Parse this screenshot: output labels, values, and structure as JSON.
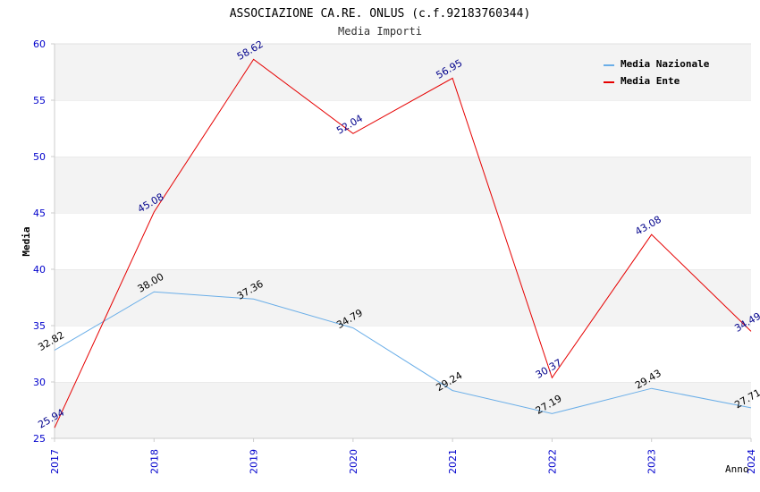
{
  "chart_data": {
    "type": "line",
    "title": "ASSOCIAZIONE CA.RE. ONLUS (c.f.92183760344)",
    "subtitle": "Media Importi",
    "xlabel": "Anno",
    "ylabel": "Media",
    "categories": [
      "2017",
      "2018",
      "2019",
      "2020",
      "2021",
      "2022",
      "2023",
      "2024"
    ],
    "ylim": [
      25,
      60
    ],
    "yticks": [
      "25",
      "30",
      "35",
      "40",
      "45",
      "50",
      "55",
      "60"
    ],
    "grid": "horizontal bands",
    "legend_position": "top-right",
    "series": [
      {
        "name": "Media Nazionale",
        "color": "#6aaee8",
        "label_color": "#000000",
        "values": [
          32.82,
          38.0,
          37.36,
          34.79,
          29.24,
          27.19,
          29.43,
          27.71
        ],
        "labels": [
          "32.82",
          "38.00",
          "37.36",
          "34.79",
          "29.24",
          "27.19",
          "29.43",
          "27.71"
        ]
      },
      {
        "name": "Media Ente",
        "color": "#e60000",
        "label_color": "#00008b",
        "values": [
          25.94,
          45.08,
          58.62,
          52.04,
          56.95,
          30.37,
          43.08,
          34.49
        ],
        "labels": [
          "25.94",
          "45.08",
          "58.62",
          "52.04",
          "56.95",
          "30.37",
          "43.08",
          "34.49"
        ]
      }
    ],
    "colors": {
      "axis_tick_text": "#0000cc",
      "band": "#f3f3f3",
      "axis": "#cccccc"
    }
  }
}
